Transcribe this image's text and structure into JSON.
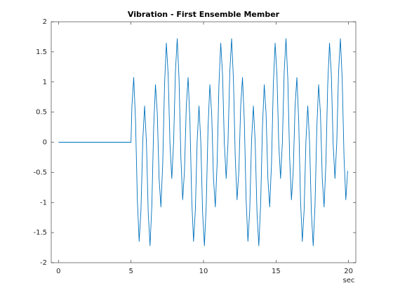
{
  "chart_data": {
    "type": "line",
    "title": "Vibration - First Ensemble Member",
    "xlabel": "sec",
    "color": "#0072bd",
    "xlim": [
      -0.5,
      20.5
    ],
    "xticks": [
      0,
      5,
      10,
      15,
      20
    ],
    "ylim": [
      -2,
      2
    ],
    "yticks": [
      -2,
      -1.5,
      -1,
      -0.5,
      0,
      0.5,
      1,
      1.5,
      2
    ],
    "x": [
      0,
      5,
      5.0625,
      5.1875,
      5.3125,
      5.4375,
      5.5625,
      5.6875,
      5.8125,
      5.9375,
      6.0625,
      6.1875,
      6.3125,
      6.4375,
      6.5625,
      6.6875,
      6.8125,
      6.9375,
      7.0625,
      7.1875,
      7.3125,
      7.4375,
      7.5625,
      7.6875,
      7.8125,
      7.9375,
      8.0625,
      8.1875,
      8.3125,
      8.4375,
      8.5625,
      8.6875,
      8.8125,
      8.9375,
      9.0625,
      9.1875,
      9.3125,
      9.4375,
      9.5625,
      9.6875,
      9.8125,
      9.9375,
      10.0625,
      10.1875,
      10.3125,
      10.4375,
      10.5625,
      10.6875,
      10.8125,
      10.9375,
      11.0625,
      11.1875,
      11.3125,
      11.4375,
      11.5625,
      11.6875,
      11.8125,
      11.9375,
      12.0625,
      12.1875,
      12.3125,
      12.4375,
      12.5625,
      12.6875,
      12.8125,
      12.9375,
      13.0625,
      13.1875,
      13.3125,
      13.4375,
      13.5625,
      13.6875,
      13.8125,
      13.9375,
      14.0625,
      14.1875,
      14.3125,
      14.4375,
      14.5625,
      14.6875,
      14.8125,
      14.9375,
      15.0625,
      15.1875,
      15.3125,
      15.4375,
      15.5625,
      15.6875,
      15.8125,
      15.9375,
      16.0625,
      16.1875,
      16.3125,
      16.4375,
      16.5625,
      16.6875,
      16.8125,
      16.9375,
      17.0625,
      17.1875,
      17.3125,
      17.4375,
      17.5625,
      17.6875,
      17.8125,
      17.9375,
      18.0625,
      18.1875,
      18.3125,
      18.4375,
      18.5625,
      18.6875,
      18.8125,
      18.9375,
      19.0625,
      19.1875,
      19.3125,
      19.4375,
      19.5625,
      19.6875,
      19.8125,
      19.9375
    ],
    "values": [
      0,
      0,
      0.6,
      1.075,
      0.356,
      -0.953,
      -1.646,
      -1.12,
      0.029,
      0.603,
      0.003,
      -1.171,
      -1.72,
      -1.046,
      0.247,
      0.956,
      0.475,
      -0.6,
      -1.075,
      -0.356,
      0.953,
      1.646,
      1.12,
      -0.029,
      -0.603,
      -0.003,
      1.171,
      1.72,
      1.046,
      -0.247,
      -0.956,
      -0.475,
      0.6,
      1.075,
      0.356,
      -0.953,
      -1.646,
      -1.12,
      0.029,
      0.603,
      0.003,
      -1.171,
      -1.72,
      -1.046,
      0.247,
      0.956,
      0.475,
      -0.6,
      -1.075,
      -0.356,
      0.953,
      1.646,
      1.12,
      -0.029,
      -0.603,
      -0.003,
      1.171,
      1.72,
      1.046,
      -0.247,
      -0.956,
      -0.475,
      0.6,
      1.075,
      0.356,
      -0.953,
      -1.646,
      -1.12,
      0.029,
      0.603,
      0.003,
      -1.171,
      -1.72,
      -1.046,
      0.247,
      0.956,
      0.475,
      -0.6,
      -1.075,
      -0.356,
      0.953,
      1.646,
      1.12,
      -0.029,
      -0.603,
      -0.003,
      1.171,
      1.72,
      1.046,
      -0.247,
      -0.956,
      -0.475,
      0.6,
      1.075,
      0.356,
      -0.953,
      -1.646,
      -1.12,
      0.029,
      0.603,
      0.003,
      -1.171,
      -1.72,
      -1.046,
      0.247,
      0.956,
      0.475,
      -0.6,
      -1.075,
      -0.356,
      0.953,
      1.646,
      1.12,
      -0.029,
      -0.603,
      -0.003,
      1.171,
      1.72,
      1.046,
      -0.247,
      -0.956,
      -0.475
    ]
  }
}
